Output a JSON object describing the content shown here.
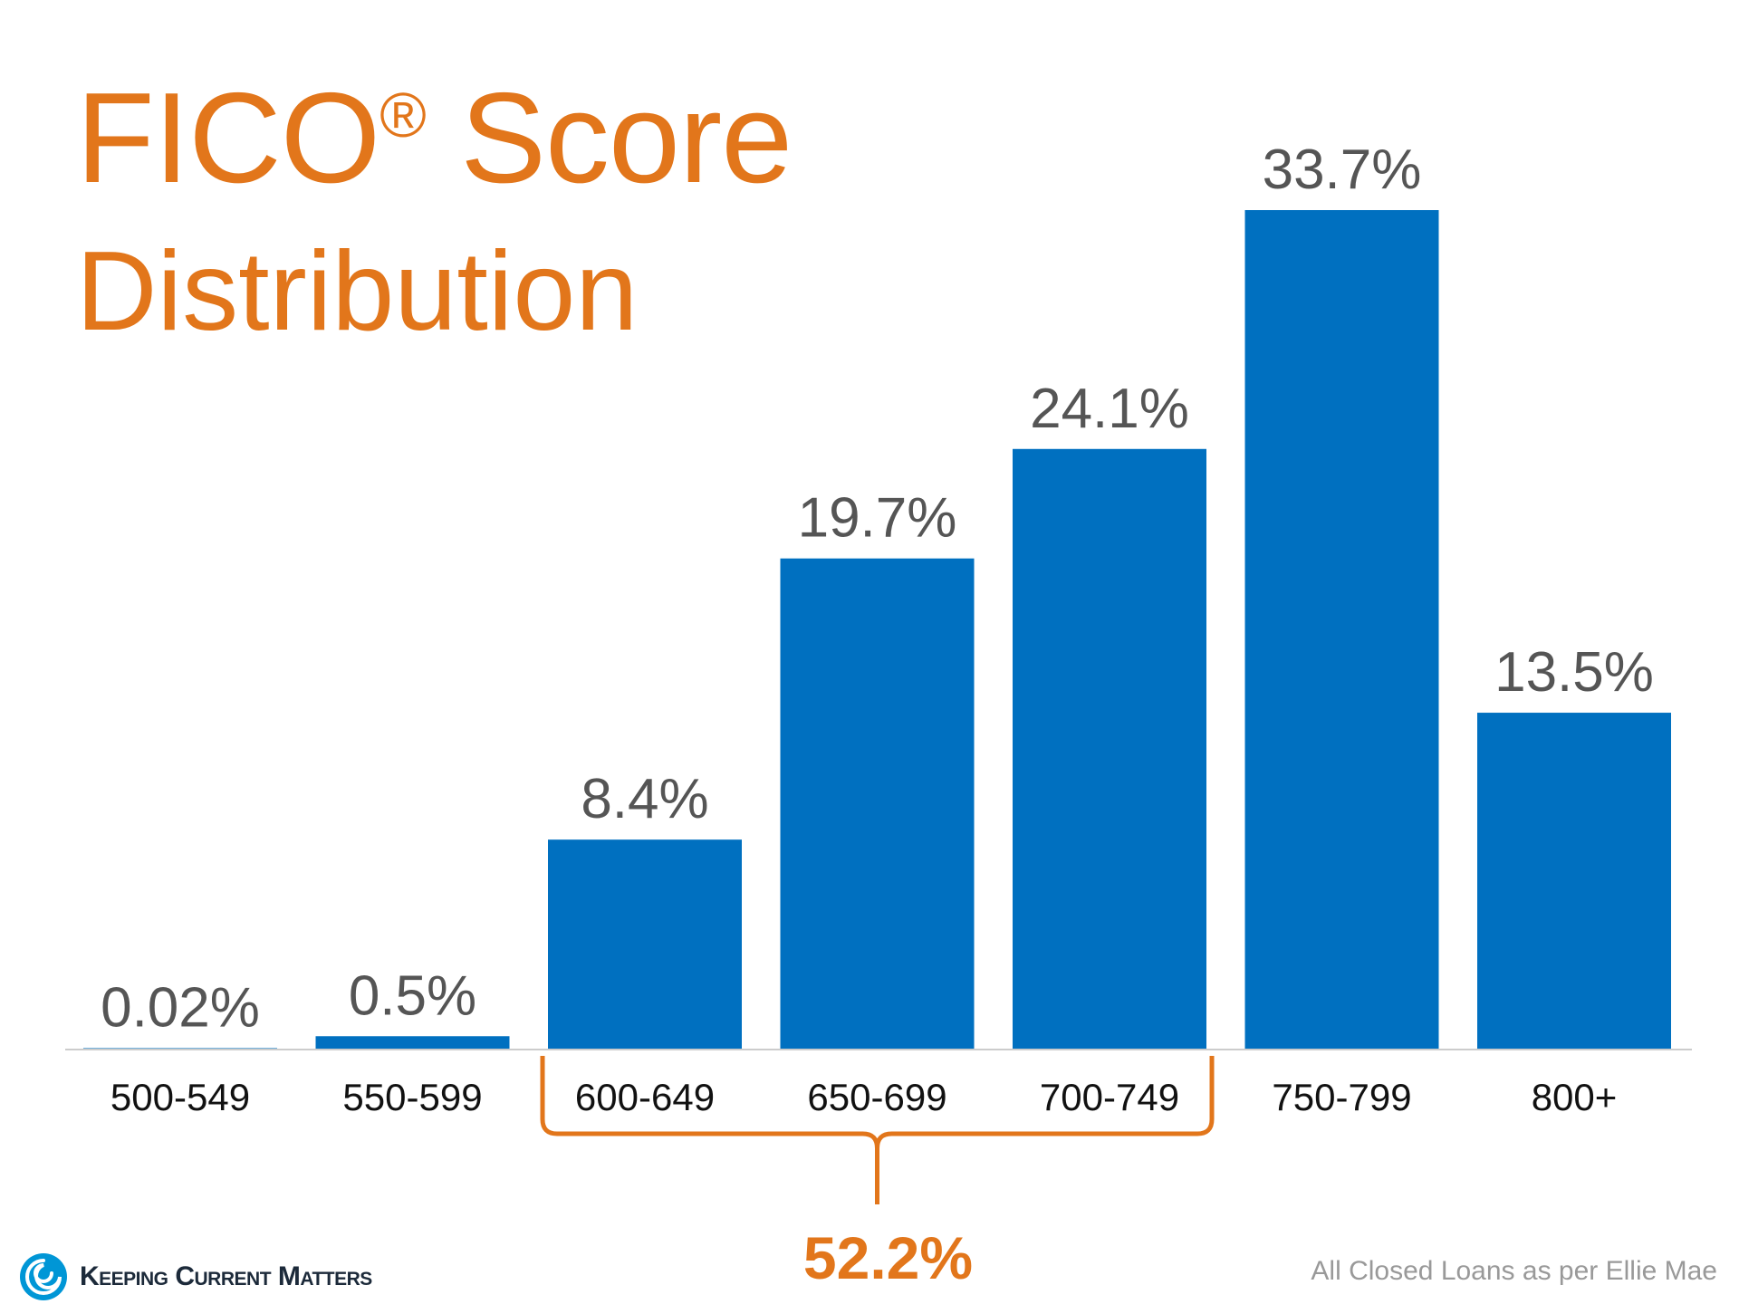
{
  "title": {
    "line1_main": "FICO",
    "line1_sup": "®",
    "line1_rest": " Score",
    "line2": "Distribution"
  },
  "colors": {
    "bar": "#0070C0",
    "accent": "#E2761B",
    "label": "#555555",
    "axis": "#cccccc"
  },
  "chart_data": {
    "type": "bar",
    "categories": [
      "500-549",
      "550-599",
      "600-649",
      "650-699",
      "700-749",
      "750-799",
      "800+"
    ],
    "values": [
      0.02,
      0.5,
      8.4,
      19.7,
      24.1,
      33.7,
      13.5
    ],
    "data_labels": [
      "0.02%",
      "0.5%",
      "8.4%",
      "19.7%",
      "24.1%",
      "33.7%",
      "13.5%"
    ],
    "ylim": [
      0,
      33.7
    ],
    "grid": false,
    "legend": "none",
    "annotation": {
      "type": "brace",
      "from_category": "600-649",
      "to_category": "700-749",
      "label": "52.2%"
    }
  },
  "footer": {
    "brand": "Keeping Current Matters",
    "logo_icon": "swirl-icon",
    "source": "All Closed Loans as per Ellie Mae"
  }
}
